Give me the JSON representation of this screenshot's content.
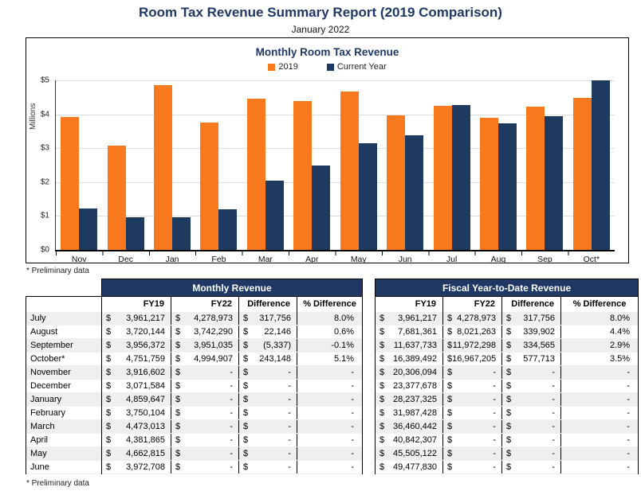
{
  "header": {
    "title": "Room Tax Revenue Summary Report (2019 Comparison)",
    "subtitle": "January 2022"
  },
  "chart_data": {
    "type": "bar",
    "title": "Monthly Room Tax Revenue",
    "categories": [
      "Nov",
      "Dec",
      "Jan",
      "Feb",
      "Mar",
      "Apr",
      "May",
      "Jun",
      "Jul",
      "Aug",
      "Sep",
      "Oct*"
    ],
    "series": [
      {
        "name": "2019",
        "color": "#F9791E",
        "values": [
          3.92,
          3.07,
          4.86,
          3.75,
          4.47,
          4.38,
          4.66,
          3.97,
          4.25,
          3.9,
          4.23,
          4.48
        ]
      },
      {
        "name": "Current Year",
        "color": "#1E3A5F",
        "values": [
          1.21,
          0.97,
          0.96,
          1.19,
          2.04,
          2.48,
          3.15,
          3.39,
          4.28,
          3.74,
          3.95,
          4.99
        ]
      }
    ],
    "ylabel": "Millions",
    "ylim": [
      0,
      5
    ],
    "yticks": [
      "$5",
      "$4",
      "$3",
      "$2",
      "$1",
      "$0"
    ],
    "grid": true,
    "legend_position": "top",
    "footnote": "* Preliminary data"
  },
  "tables": {
    "monthly": {
      "title": "Monthly Revenue",
      "columns": [
        "FY19",
        "FY22",
        "Difference",
        "% Difference"
      ]
    },
    "ytd": {
      "title": "Fiscal Year-to-Date Revenue",
      "columns": [
        "FY19",
        "FY22",
        "Difference",
        "% Difference"
      ]
    },
    "currency_symbol": "$",
    "footnote": "* Preliminary data",
    "rows": [
      {
        "month": "July",
        "monthly": [
          "3,961,217",
          "4,278,973",
          "317,756",
          "8.0%"
        ],
        "ytd": [
          "3,961,217",
          "4,278,973",
          "317,756",
          "8.0%"
        ]
      },
      {
        "month": "August",
        "monthly": [
          "3,720,144",
          "3,742,290",
          "22,146",
          "0.6%"
        ],
        "ytd": [
          "7,681,361",
          "8,021,263",
          "339,902",
          "4.4%"
        ]
      },
      {
        "month": "September",
        "monthly": [
          "3,956,372",
          "3,951,035",
          "(5,337)",
          "-0.1%"
        ],
        "ytd": [
          "11,637,733",
          "11,972,298",
          "334,565",
          "2.9%"
        ]
      },
      {
        "month": "October*",
        "monthly": [
          "4,751,759",
          "4,994,907",
          "243,148",
          "5.1%"
        ],
        "ytd": [
          "16,389,492",
          "16,967,205",
          "577,713",
          "3.5%"
        ]
      },
      {
        "month": "November",
        "monthly": [
          "3,916,602",
          "-",
          "-",
          "-"
        ],
        "ytd": [
          "20,306,094",
          "-",
          "-",
          "-"
        ]
      },
      {
        "month": "December",
        "monthly": [
          "3,071,584",
          "-",
          "-",
          "-"
        ],
        "ytd": [
          "23,377,678",
          "-",
          "-",
          "-"
        ]
      },
      {
        "month": "January",
        "monthly": [
          "4,859,647",
          "-",
          "-",
          "-"
        ],
        "ytd": [
          "28,237,325",
          "-",
          "-",
          "-"
        ]
      },
      {
        "month": "February",
        "monthly": [
          "3,750,104",
          "-",
          "-",
          "-"
        ],
        "ytd": [
          "31,987,428",
          "-",
          "-",
          "-"
        ]
      },
      {
        "month": "March",
        "monthly": [
          "4,473,013",
          "-",
          "-",
          "-"
        ],
        "ytd": [
          "36,460,442",
          "-",
          "-",
          "-"
        ]
      },
      {
        "month": "April",
        "monthly": [
          "4,381,865",
          "-",
          "-",
          "-"
        ],
        "ytd": [
          "40,842,307",
          "-",
          "-",
          "-"
        ]
      },
      {
        "month": "May",
        "monthly": [
          "4,662,815",
          "-",
          "-",
          "-"
        ],
        "ytd": [
          "45,505,122",
          "-",
          "-",
          "-"
        ]
      },
      {
        "month": "June",
        "monthly": [
          "3,972,708",
          "-",
          "-",
          "-"
        ],
        "ytd": [
          "49,477,830",
          "-",
          "-",
          "-"
        ]
      }
    ]
  }
}
